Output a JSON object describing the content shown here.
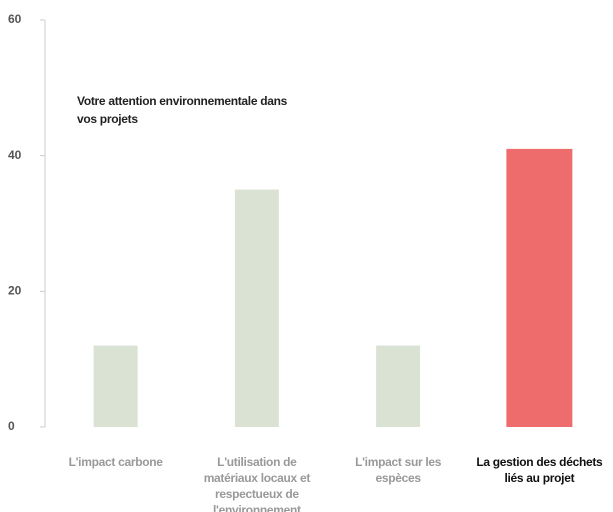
{
  "chart_data": {
    "type": "bar",
    "title": "Votre attention environnementale dans vos projets",
    "categories": [
      "L'impact carbone",
      "L'utilisation de matériaux locaux et respectueux de l'environnement",
      "L'impact sur les espèces",
      "La gestion des déchets liés au projet"
    ],
    "values": [
      12,
      35,
      12,
      41
    ],
    "colors": [
      "#dae2d3",
      "#dae2d3",
      "#dae2d3",
      "#ee6c6c"
    ],
    "highlight": 3,
    "ylim": [
      0,
      60
    ],
    "yticks": [
      0,
      20,
      40,
      60
    ]
  }
}
